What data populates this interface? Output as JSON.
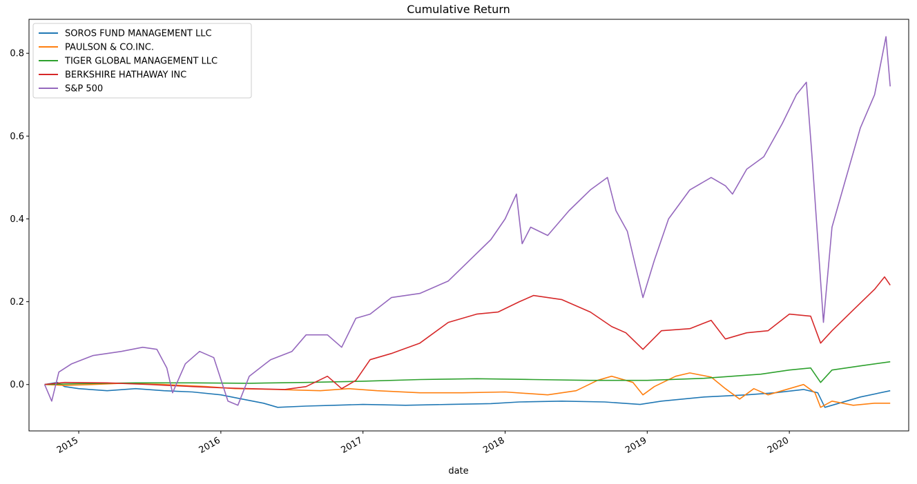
{
  "chart_data": {
    "type": "line",
    "title": "Cumulative Return",
    "xlabel": "date",
    "ylabel": "",
    "xlim": [
      2014.65,
      2020.84
    ],
    "ylim": [
      -0.112,
      0.882
    ],
    "grid": false,
    "legend_position": "top-left",
    "yticks": [
      {
        "value": 0.0,
        "label": "0.0"
      },
      {
        "value": 0.2,
        "label": "0.2"
      },
      {
        "value": 0.4,
        "label": "0.4"
      },
      {
        "value": 0.6,
        "label": "0.6"
      },
      {
        "value": 0.8,
        "label": "0.8"
      }
    ],
    "xticks": [
      {
        "value": 2015,
        "label": "2015"
      },
      {
        "value": 2016,
        "label": "2016"
      },
      {
        "value": 2017,
        "label": "2017"
      },
      {
        "value": 2018,
        "label": "2018"
      },
      {
        "value": 2019,
        "label": "2019"
      },
      {
        "value": 2020,
        "label": "2020"
      }
    ],
    "series": [
      {
        "name": "SOROS FUND MANAGEMENT LLC",
        "color": "#1f77b4",
        "points": [
          [
            2014.76,
            0.0
          ],
          [
            2014.85,
            0.005
          ],
          [
            2014.9,
            -0.005
          ],
          [
            2015.0,
            -0.01
          ],
          [
            2015.2,
            -0.015
          ],
          [
            2015.4,
            -0.01
          ],
          [
            2015.6,
            -0.015
          ],
          [
            2015.8,
            -0.018
          ],
          [
            2016.0,
            -0.025
          ],
          [
            2016.15,
            -0.035
          ],
          [
            2016.3,
            -0.045
          ],
          [
            2016.4,
            -0.055
          ],
          [
            2016.6,
            -0.052
          ],
          [
            2016.8,
            -0.05
          ],
          [
            2017.0,
            -0.048
          ],
          [
            2017.3,
            -0.05
          ],
          [
            2017.6,
            -0.048
          ],
          [
            2017.9,
            -0.046
          ],
          [
            2018.1,
            -0.042
          ],
          [
            2018.4,
            -0.04
          ],
          [
            2018.7,
            -0.042
          ],
          [
            2018.95,
            -0.048
          ],
          [
            2019.1,
            -0.04
          ],
          [
            2019.4,
            -0.03
          ],
          [
            2019.7,
            -0.025
          ],
          [
            2019.9,
            -0.02
          ],
          [
            2020.1,
            -0.012
          ],
          [
            2020.2,
            -0.02
          ],
          [
            2020.25,
            -0.055
          ],
          [
            2020.35,
            -0.045
          ],
          [
            2020.5,
            -0.03
          ],
          [
            2020.71,
            -0.015
          ]
        ]
      },
      {
        "name": "PAULSON & CO.INC.",
        "color": "#ff7f0e",
        "points": [
          [
            2014.76,
            0.0
          ],
          [
            2014.9,
            -0.002
          ],
          [
            2015.1,
            0.0
          ],
          [
            2015.3,
            0.003
          ],
          [
            2015.6,
            0.0
          ],
          [
            2015.9,
            -0.005
          ],
          [
            2016.1,
            -0.01
          ],
          [
            2016.4,
            -0.012
          ],
          [
            2016.7,
            -0.015
          ],
          [
            2016.9,
            -0.01
          ],
          [
            2017.1,
            -0.015
          ],
          [
            2017.4,
            -0.02
          ],
          [
            2017.7,
            -0.02
          ],
          [
            2018.0,
            -0.018
          ],
          [
            2018.3,
            -0.025
          ],
          [
            2018.5,
            -0.015
          ],
          [
            2018.65,
            0.01
          ],
          [
            2018.75,
            0.02
          ],
          [
            2018.9,
            0.005
          ],
          [
            2018.97,
            -0.025
          ],
          [
            2019.05,
            -0.005
          ],
          [
            2019.2,
            0.02
          ],
          [
            2019.3,
            0.028
          ],
          [
            2019.45,
            0.018
          ],
          [
            2019.55,
            -0.01
          ],
          [
            2019.65,
            -0.035
          ],
          [
            2019.75,
            -0.01
          ],
          [
            2019.85,
            -0.025
          ],
          [
            2020.0,
            -0.01
          ],
          [
            2020.1,
            0.0
          ],
          [
            2020.18,
            -0.02
          ],
          [
            2020.22,
            -0.055
          ],
          [
            2020.3,
            -0.04
          ],
          [
            2020.45,
            -0.05
          ],
          [
            2020.6,
            -0.045
          ],
          [
            2020.71,
            -0.045
          ]
        ]
      },
      {
        "name": "TIGER GLOBAL MANAGEMENT LLC",
        "color": "#2ca02c",
        "points": [
          [
            2014.76,
            0.0
          ],
          [
            2015.0,
            0.002
          ],
          [
            2015.4,
            0.004
          ],
          [
            2015.8,
            0.004
          ],
          [
            2016.2,
            0.003
          ],
          [
            2016.6,
            0.005
          ],
          [
            2017.0,
            0.008
          ],
          [
            2017.4,
            0.012
          ],
          [
            2017.8,
            0.014
          ],
          [
            2018.2,
            0.012
          ],
          [
            2018.6,
            0.01
          ],
          [
            2019.0,
            0.01
          ],
          [
            2019.4,
            0.015
          ],
          [
            2019.8,
            0.025
          ],
          [
            2020.0,
            0.035
          ],
          [
            2020.15,
            0.04
          ],
          [
            2020.22,
            0.005
          ],
          [
            2020.3,
            0.035
          ],
          [
            2020.5,
            0.045
          ],
          [
            2020.71,
            0.055
          ]
        ]
      },
      {
        "name": "BERKSHIRE HATHAWAY INC",
        "color": "#d62728",
        "points": [
          [
            2014.76,
            0.0
          ],
          [
            2014.9,
            0.005
          ],
          [
            2015.2,
            0.004
          ],
          [
            2015.5,
            0.0
          ],
          [
            2015.8,
            -0.005
          ],
          [
            2016.0,
            -0.008
          ],
          [
            2016.2,
            -0.01
          ],
          [
            2016.45,
            -0.012
          ],
          [
            2016.6,
            -0.005
          ],
          [
            2016.75,
            0.02
          ],
          [
            2016.85,
            -0.01
          ],
          [
            2016.95,
            0.01
          ],
          [
            2017.05,
            0.06
          ],
          [
            2017.2,
            0.075
          ],
          [
            2017.4,
            0.1
          ],
          [
            2017.6,
            0.15
          ],
          [
            2017.8,
            0.17
          ],
          [
            2017.95,
            0.175
          ],
          [
            2018.1,
            0.2
          ],
          [
            2018.2,
            0.215
          ],
          [
            2018.4,
            0.205
          ],
          [
            2018.6,
            0.175
          ],
          [
            2018.75,
            0.14
          ],
          [
            2018.85,
            0.125
          ],
          [
            2018.97,
            0.085
          ],
          [
            2019.1,
            0.13
          ],
          [
            2019.3,
            0.135
          ],
          [
            2019.45,
            0.155
          ],
          [
            2019.55,
            0.11
          ],
          [
            2019.7,
            0.125
          ],
          [
            2019.85,
            0.13
          ],
          [
            2020.0,
            0.17
          ],
          [
            2020.15,
            0.165
          ],
          [
            2020.22,
            0.1
          ],
          [
            2020.3,
            0.13
          ],
          [
            2020.45,
            0.18
          ],
          [
            2020.6,
            0.23
          ],
          [
            2020.67,
            0.26
          ],
          [
            2020.71,
            0.24
          ]
        ]
      },
      {
        "name": "S&P 500",
        "color": "#9467bd",
        "points": [
          [
            2014.76,
            0.0
          ],
          [
            2014.81,
            -0.04
          ],
          [
            2014.86,
            0.03
          ],
          [
            2014.95,
            0.05
          ],
          [
            2015.1,
            0.07
          ],
          [
            2015.3,
            0.08
          ],
          [
            2015.45,
            0.09
          ],
          [
            2015.55,
            0.085
          ],
          [
            2015.62,
            0.04
          ],
          [
            2015.66,
            -0.02
          ],
          [
            2015.75,
            0.05
          ],
          [
            2015.85,
            0.08
          ],
          [
            2015.95,
            0.065
          ],
          [
            2016.05,
            -0.04
          ],
          [
            2016.12,
            -0.05
          ],
          [
            2016.2,
            0.02
          ],
          [
            2016.35,
            0.06
          ],
          [
            2016.5,
            0.08
          ],
          [
            2016.6,
            0.12
          ],
          [
            2016.75,
            0.12
          ],
          [
            2016.85,
            0.09
          ],
          [
            2016.95,
            0.16
          ],
          [
            2017.05,
            0.17
          ],
          [
            2017.2,
            0.21
          ],
          [
            2017.4,
            0.22
          ],
          [
            2017.6,
            0.25
          ],
          [
            2017.75,
            0.3
          ],
          [
            2017.9,
            0.35
          ],
          [
            2018.0,
            0.4
          ],
          [
            2018.08,
            0.46
          ],
          [
            2018.12,
            0.34
          ],
          [
            2018.18,
            0.38
          ],
          [
            2018.3,
            0.36
          ],
          [
            2018.45,
            0.42
          ],
          [
            2018.6,
            0.47
          ],
          [
            2018.72,
            0.5
          ],
          [
            2018.78,
            0.42
          ],
          [
            2018.86,
            0.37
          ],
          [
            2018.97,
            0.21
          ],
          [
            2019.05,
            0.3
          ],
          [
            2019.15,
            0.4
          ],
          [
            2019.3,
            0.47
          ],
          [
            2019.45,
            0.5
          ],
          [
            2019.55,
            0.48
          ],
          [
            2019.6,
            0.46
          ],
          [
            2019.7,
            0.52
          ],
          [
            2019.82,
            0.55
          ],
          [
            2019.95,
            0.63
          ],
          [
            2020.05,
            0.7
          ],
          [
            2020.12,
            0.73
          ],
          [
            2020.16,
            0.55
          ],
          [
            2020.2,
            0.35
          ],
          [
            2020.24,
            0.15
          ],
          [
            2020.3,
            0.38
          ],
          [
            2020.4,
            0.5
          ],
          [
            2020.5,
            0.62
          ],
          [
            2020.6,
            0.7
          ],
          [
            2020.68,
            0.84
          ],
          [
            2020.71,
            0.72
          ]
        ]
      }
    ]
  }
}
